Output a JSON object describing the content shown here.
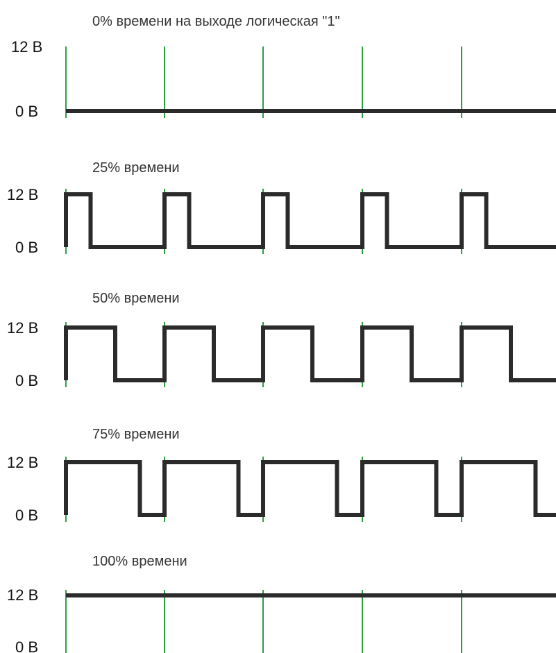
{
  "diagram": {
    "colors": {
      "grid": "#2e9e44",
      "signal": "#2b2b2b",
      "text": "#111111",
      "background": "#ffffff"
    },
    "panels": [
      {
        "title": "0% времени на выходе логическая \"1\"",
        "high_label": "12 В",
        "low_label": "0 В",
        "duty": 0.0
      },
      {
        "title": "25% времени",
        "high_label": "12 В",
        "low_label": "0 В",
        "duty": 0.25
      },
      {
        "title": "50% времени",
        "high_label": "12 В",
        "low_label": "0 В",
        "duty": 0.5
      },
      {
        "title": "75% времени",
        "high_label": "12 В",
        "low_label": "0 В",
        "duty": 0.75
      },
      {
        "title": "100% времени",
        "high_label": "12 В",
        "low_label": "0 В",
        "duty": 1.0
      }
    ]
  }
}
